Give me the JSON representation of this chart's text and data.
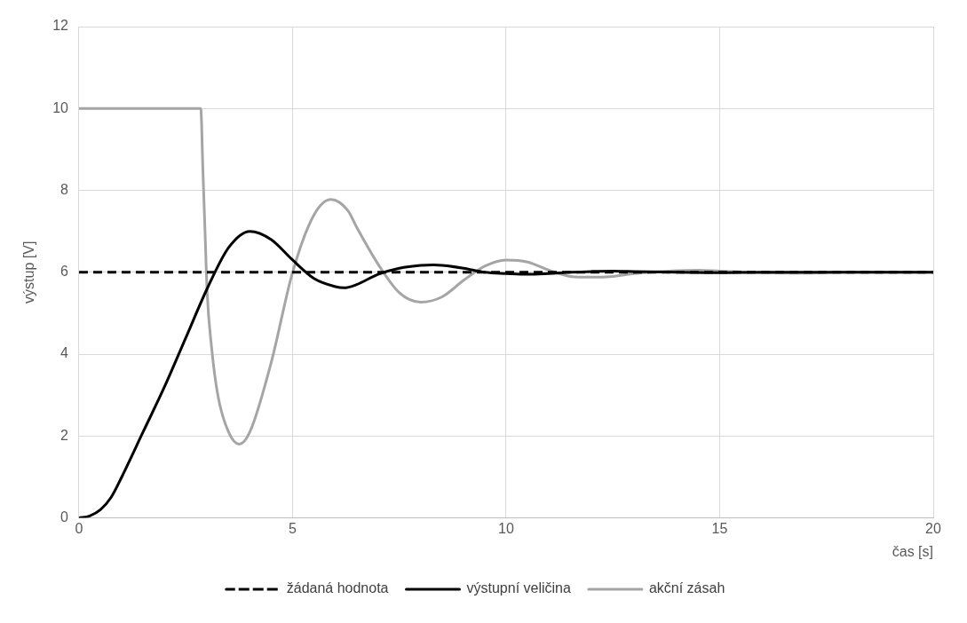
{
  "chart_data": {
    "type": "line",
    "xlabel": "čas [s]",
    "ylabel": "výstup [V]",
    "xlim": [
      0,
      20
    ],
    "xticks": [
      0,
      5,
      10,
      15,
      20
    ],
    "ylim": [
      0,
      12
    ],
    "yticks": [
      0,
      2,
      4,
      6,
      8,
      10,
      12
    ],
    "grid": true,
    "legend": "bottom",
    "marker": "none",
    "series": [
      {
        "name": "žádaná hodnota",
        "color": "#000000",
        "line_style": "dashed",
        "x": [
          0,
          20
        ],
        "values": [
          6,
          6
        ]
      },
      {
        "name": "výstupní veličina",
        "color": "#000000",
        "line_style": "solid",
        "x": [
          0,
          0.25,
          0.5,
          0.75,
          1,
          1.5,
          2,
          2.5,
          3,
          3.5,
          4,
          4.5,
          5,
          5.5,
          6,
          6.2,
          6.5,
          7,
          7.5,
          8,
          8.3,
          8.5,
          9,
          9.5,
          10,
          10.5,
          11,
          11.5,
          12,
          12.5,
          13,
          14,
          15,
          16,
          18,
          20
        ],
        "values": [
          0,
          0.05,
          0.2,
          0.5,
          1.0,
          2.1,
          3.2,
          4.4,
          5.6,
          6.6,
          7.0,
          6.8,
          6.3,
          5.85,
          5.65,
          5.62,
          5.7,
          5.95,
          6.1,
          6.17,
          6.18,
          6.17,
          6.1,
          6.0,
          5.97,
          5.95,
          5.97,
          6.0,
          6.02,
          6.03,
          6.02,
          6.0,
          5.99,
          6.0,
          6.0,
          6.0
        ]
      },
      {
        "name": "akční zásah",
        "color": "#a5a5a5",
        "line_style": "solid",
        "x": [
          0,
          2.85,
          2.9,
          2.95,
          3.0,
          3.1,
          3.25,
          3.5,
          3.75,
          4.0,
          4.5,
          5.0,
          5.5,
          5.9,
          6.3,
          6.5,
          7,
          7.5,
          8,
          8.5,
          9,
          9.5,
          10,
          10.5,
          11,
          11.5,
          12,
          12.5,
          13,
          14,
          14.5,
          15,
          16,
          17,
          18,
          20
        ],
        "values": [
          10,
          10,
          8.5,
          7.0,
          5.5,
          4.2,
          3.0,
          2.1,
          1.8,
          2.1,
          3.8,
          6.0,
          7.4,
          7.78,
          7.5,
          7.1,
          6.2,
          5.5,
          5.27,
          5.4,
          5.8,
          6.15,
          6.3,
          6.25,
          6.05,
          5.9,
          5.88,
          5.9,
          5.97,
          6.04,
          6.05,
          6.03,
          5.99,
          5.98,
          6.0,
          6.0
        ]
      }
    ]
  }
}
